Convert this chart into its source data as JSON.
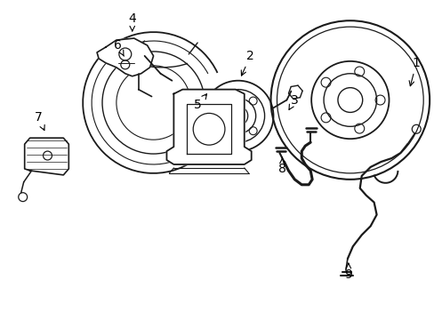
{
  "title": "",
  "background_color": "#ffffff",
  "line_color": "#1a1a1a",
  "label_color": "#000000",
  "label_fontsize": 10,
  "figsize": [
    4.89,
    3.6
  ],
  "dpi": 100
}
